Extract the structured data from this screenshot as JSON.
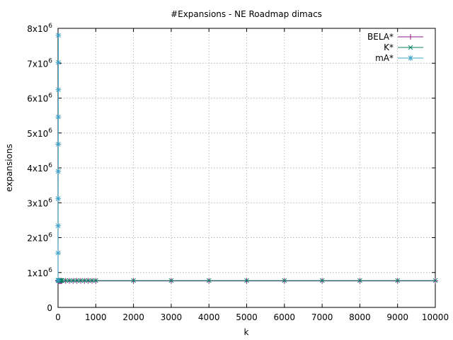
{
  "chart_data": {
    "type": "line",
    "title": "#Expansions - NE Roadmap dimacs",
    "xlabel": "k",
    "ylabel": "expansions",
    "xlim": [
      0,
      10000
    ],
    "ylim": [
      0,
      8000000
    ],
    "grid": true,
    "legend_position": "top-right",
    "x_ticks": [
      {
        "value": 0,
        "label": "0"
      },
      {
        "value": 1000,
        "label": "1000"
      },
      {
        "value": 2000,
        "label": "2000"
      },
      {
        "value": 3000,
        "label": "3000"
      },
      {
        "value": 4000,
        "label": "4000"
      },
      {
        "value": 5000,
        "label": "5000"
      },
      {
        "value": 6000,
        "label": "6000"
      },
      {
        "value": 7000,
        "label": "7000"
      },
      {
        "value": 8000,
        "label": "8000"
      },
      {
        "value": 9000,
        "label": "9000"
      },
      {
        "value": 10000,
        "label": "10000"
      }
    ],
    "y_ticks": [
      {
        "value": 0,
        "base": "0",
        "exp": ""
      },
      {
        "value": 1000000,
        "base": "1x10",
        "exp": "6"
      },
      {
        "value": 2000000,
        "base": "2x10",
        "exp": "6"
      },
      {
        "value": 3000000,
        "base": "3x10",
        "exp": "6"
      },
      {
        "value": 4000000,
        "base": "4x10",
        "exp": "6"
      },
      {
        "value": 5000000,
        "base": "5x10",
        "exp": "6"
      },
      {
        "value": 6000000,
        "base": "6x10",
        "exp": "6"
      },
      {
        "value": 7000000,
        "base": "7x10",
        "exp": "6"
      },
      {
        "value": 8000000,
        "base": "8x10",
        "exp": "6"
      }
    ],
    "series": [
      {
        "name": "BELA*",
        "color": "#8b1a8b",
        "marker": "plus",
        "x": [
          1,
          10,
          20,
          30,
          40,
          50,
          60,
          70,
          80,
          90,
          100,
          200,
          300,
          400,
          500,
          600,
          700,
          800,
          900,
          1000,
          2000,
          3000,
          4000,
          5000,
          6000,
          7000,
          8000,
          9000,
          10000
        ],
        "y": [
          760000,
          760000,
          760000,
          760000,
          760000,
          760000,
          760000,
          760000,
          760000,
          760000,
          760000,
          760000,
          760000,
          760000,
          760000,
          760000,
          760000,
          760000,
          760000,
          760000,
          760000,
          760000,
          760000,
          760000,
          760000,
          760000,
          760000,
          760000,
          760000
        ]
      },
      {
        "name": "K*",
        "color": "#0a8060",
        "marker": "cross",
        "x": [
          1,
          10,
          20,
          30,
          40,
          50,
          60,
          70,
          80,
          90,
          100,
          200,
          300,
          400,
          500,
          600,
          700,
          800,
          900,
          1000,
          2000,
          3000,
          4000,
          5000,
          6000,
          7000,
          8000,
          9000,
          10000
        ],
        "y": [
          770000,
          770000,
          770000,
          770000,
          770000,
          770000,
          770000,
          770000,
          770000,
          770000,
          770000,
          770000,
          770000,
          770000,
          770000,
          770000,
          770000,
          770000,
          770000,
          770000,
          770000,
          770000,
          770000,
          770000,
          770000,
          770000,
          770000,
          770000,
          770000
        ]
      },
      {
        "name": "mA*",
        "color": "#3ca0c8",
        "marker": "star",
        "x": [
          1,
          2,
          3,
          4,
          5,
          6,
          7,
          8,
          9,
          10
        ],
        "y": [
          780000,
          1560000,
          2340000,
          3120000,
          3900000,
          4680000,
          5460000,
          6240000,
          7020000,
          7800000
        ]
      }
    ]
  }
}
